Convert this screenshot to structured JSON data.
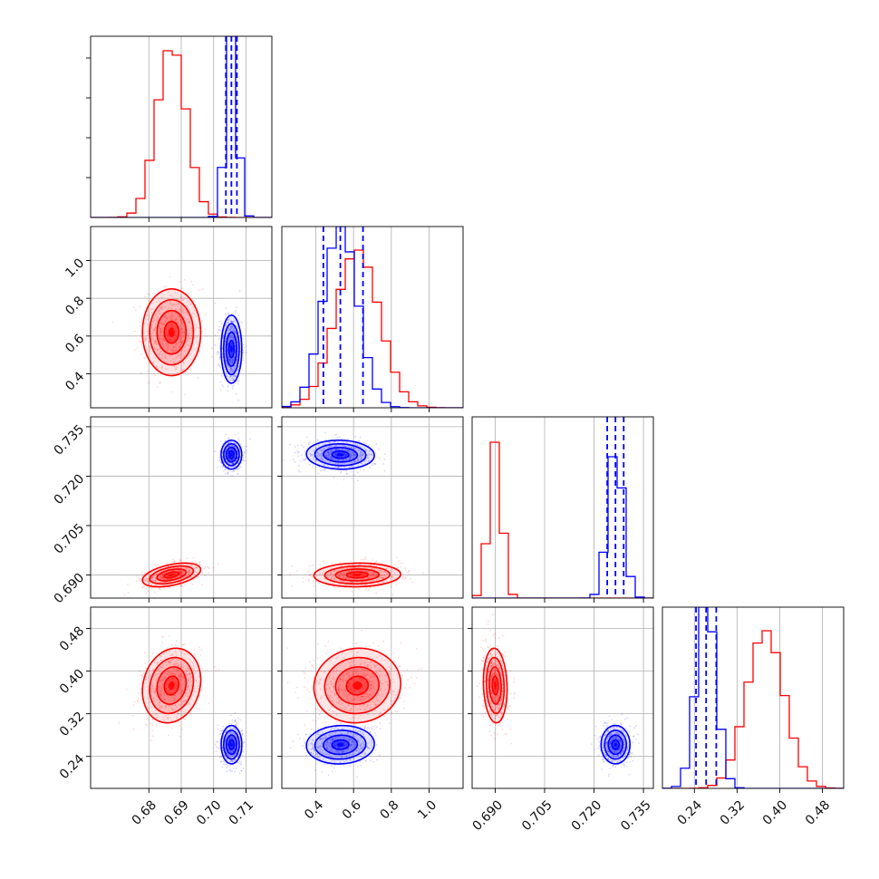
{
  "chart_data": {
    "type": "corner",
    "grid": true,
    "colors": {
      "red_series": "#ff0000",
      "blue_series": "#0000ff",
      "grid": "#b0b0b0"
    },
    "parameters": [
      {
        "range": [
          0.662,
          0.718
        ],
        "ticks": [
          0.68,
          0.69,
          0.7,
          0.71
        ],
        "tick_labels": [
          "0.68",
          "0.69",
          "0.70",
          "0.71"
        ]
      },
      {
        "range": [
          0.22,
          1.18
        ],
        "ticks": [
          0.4,
          0.6,
          0.8,
          1.0
        ],
        "tick_labels": [
          "0.4",
          "0.6",
          "0.8",
          "1.0"
        ]
      },
      {
        "range": [
          0.683,
          0.738
        ],
        "ticks": [
          0.69,
          0.705,
          0.72,
          0.735
        ],
        "tick_labels": [
          "0.690",
          "0.705",
          "0.720",
          "0.735"
        ]
      },
      {
        "range": [
          0.18,
          0.52
        ],
        "ticks": [
          0.24,
          0.32,
          0.4,
          0.48
        ],
        "tick_labels": [
          "0.24",
          "0.32",
          "0.40",
          "0.48"
        ]
      }
    ],
    "series": [
      {
        "color": "#ff0000",
        "mean": [
          0.687,
          0.62,
          0.69,
          0.373
        ],
        "sigma": [
          0.0045,
          0.115,
          0.0018,
          0.035
        ],
        "correlations": [
          [
            0,
            2,
            0.45
          ],
          [
            0,
            3,
            0.15
          ],
          [
            1,
            2,
            0.05
          ],
          [
            1,
            3,
            0.05
          ],
          [
            2,
            3,
            -0.1
          ]
        ],
        "hist_peak": [
          0.92,
          0.87,
          0.86,
          0.87
        ],
        "quantile_lines": []
      },
      {
        "color": "#0000ff",
        "mean": [
          0.7055,
          0.53,
          0.7265,
          0.262
        ],
        "sigma": [
          0.0016,
          0.09,
          0.0022,
          0.018
        ],
        "correlations": [
          [
            0,
            1,
            0.0
          ],
          [
            1,
            2,
            -0.05
          ],
          [
            1,
            3,
            0.05
          ]
        ],
        "hist_peak": [
          1.0,
          1.0,
          0.78,
          1.0
        ],
        "quantile_lines": [
          [
            0.7038,
            0.7055,
            0.7072
          ],
          [
            0.44,
            0.53,
            0.65
          ],
          [
            0.724,
            0.7265,
            0.729
          ],
          [
            0.243,
            0.262,
            0.281
          ]
        ]
      }
    ]
  }
}
